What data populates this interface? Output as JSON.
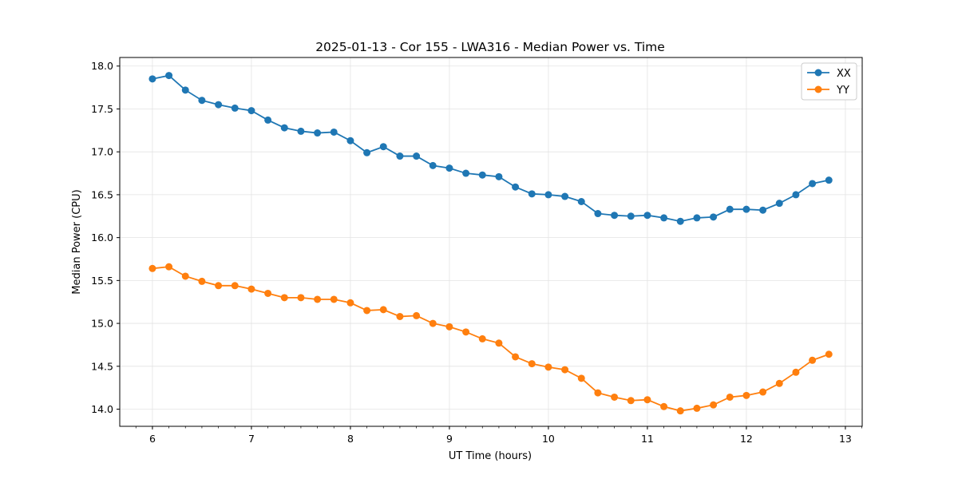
{
  "chart_data": {
    "type": "line",
    "title": "2025-01-13 - Cor 155 - LWA316 - Median Power vs. Time",
    "xlabel": "UT Time (hours)",
    "ylabel": "Median Power (CPU)",
    "xlim": [
      5.67,
      13.17
    ],
    "ylim": [
      13.8,
      18.1
    ],
    "xticks": [
      6,
      7,
      8,
      9,
      10,
      11,
      12,
      13
    ],
    "yticks": [
      14.0,
      14.5,
      15.0,
      15.5,
      16.0,
      16.5,
      17.0,
      17.5,
      18.0
    ],
    "ytick_labels": [
      "14.0",
      "14.5",
      "15.0",
      "15.5",
      "16.0",
      "16.5",
      "17.0",
      "17.5",
      "18.0"
    ],
    "grid": true,
    "legend_position": "top-right",
    "x": [
      6.0,
      6.1667,
      6.3333,
      6.5,
      6.6667,
      6.8333,
      7.0,
      7.1667,
      7.3333,
      7.5,
      7.6667,
      7.8333,
      8.0,
      8.1667,
      8.3333,
      8.5,
      8.6667,
      8.8333,
      9.0,
      9.1667,
      9.3333,
      9.5,
      9.6667,
      9.8333,
      10.0,
      10.1667,
      10.3333,
      10.5,
      10.6667,
      10.8333,
      11.0,
      11.1667,
      11.3333,
      11.5,
      11.6667,
      11.8333,
      12.0,
      12.1667,
      12.3333,
      12.5,
      12.6667,
      12.8333
    ],
    "series": [
      {
        "name": "XX",
        "color": "#1f77b4",
        "values": [
          17.85,
          17.89,
          17.72,
          17.6,
          17.55,
          17.51,
          17.48,
          17.37,
          17.28,
          17.24,
          17.22,
          17.23,
          17.13,
          16.99,
          17.06,
          16.95,
          16.95,
          16.84,
          16.81,
          16.75,
          16.73,
          16.71,
          16.59,
          16.51,
          16.5,
          16.48,
          16.42,
          16.28,
          16.26,
          16.25,
          16.26,
          16.23,
          16.19,
          16.23,
          16.24,
          16.33,
          16.33,
          16.32,
          16.4,
          16.5,
          16.63,
          16.67
        ]
      },
      {
        "name": "YY",
        "color": "#ff7f0e",
        "values": [
          15.64,
          15.66,
          15.55,
          15.49,
          15.44,
          15.44,
          15.4,
          15.35,
          15.3,
          15.3,
          15.28,
          15.28,
          15.24,
          15.15,
          15.16,
          15.08,
          15.09,
          15.0,
          14.96,
          14.9,
          14.82,
          14.77,
          14.61,
          14.53,
          14.49,
          14.46,
          14.36,
          14.19,
          14.14,
          14.1,
          14.11,
          14.03,
          13.98,
          14.01,
          14.05,
          14.14,
          14.16,
          14.2,
          14.3,
          14.43,
          14.57,
          14.64
        ]
      }
    ]
  }
}
